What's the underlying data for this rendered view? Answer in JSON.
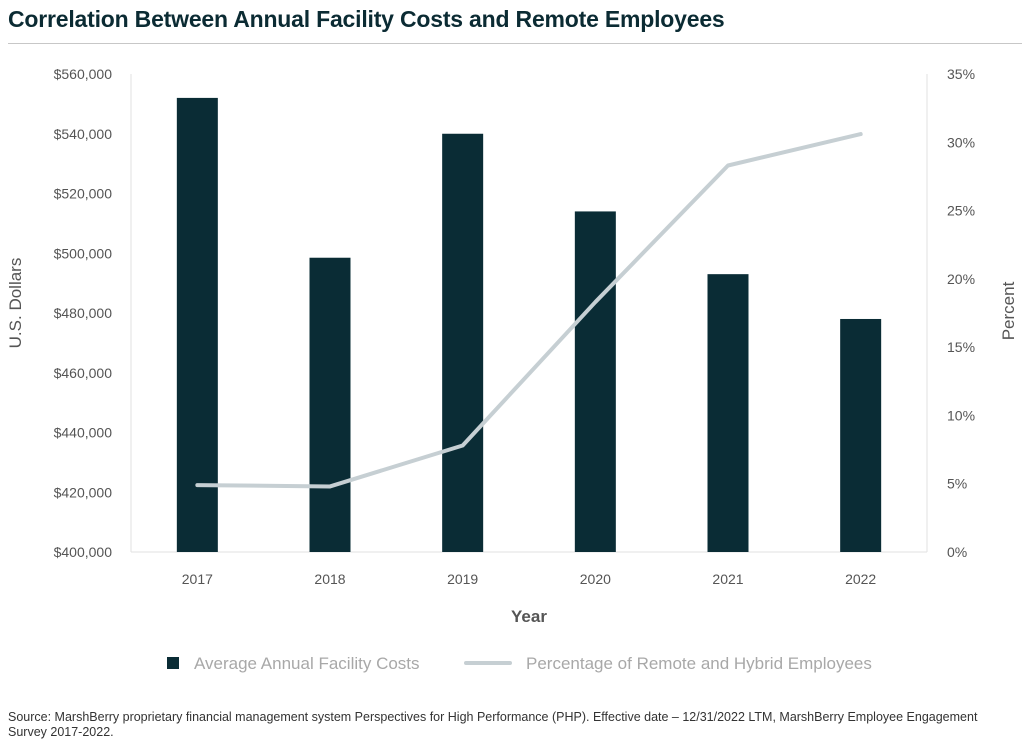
{
  "chart_data": {
    "type": "bar+line",
    "title": "Correlation Between Annual Facility Costs and Remote Employees",
    "xlabel": "Year",
    "ylabel_left": "U.S. Dollars",
    "ylabel_right": "Percent",
    "categories": [
      "2017",
      "2018",
      "2019",
      "2020",
      "2021",
      "2022"
    ],
    "left_axis": {
      "min": 400000,
      "max": 560000,
      "step": 20000,
      "tick_labels": [
        "$400,000",
        "$420,000",
        "$440,000",
        "$460,000",
        "$480,000",
        "$500,000",
        "$520,000",
        "$540,000",
        "$560,000"
      ]
    },
    "right_axis": {
      "min": 0,
      "max": 35,
      "step": 5,
      "tick_labels": [
        "0%",
        "5%",
        "10%",
        "15%",
        "20%",
        "25%",
        "30%",
        "35%"
      ]
    },
    "series": [
      {
        "name": "Average Annual Facility Costs",
        "type": "bar",
        "axis": "left",
        "color": "#0a2c35",
        "values": [
          552000,
          498500,
          540000,
          514000,
          493000,
          478000
        ]
      },
      {
        "name": "Percentage of Remote and Hybrid Employees",
        "type": "line",
        "axis": "right",
        "color": "#c6cfd3",
        "values": [
          4.9,
          4.8,
          7.8,
          18.3,
          28.3,
          30.6
        ]
      }
    ],
    "grid": false,
    "legend_position": "bottom"
  },
  "source_note": "Source: MarshBerry proprietary financial management system Perspectives for High Performance (PHP). Effective date – 12/31/2022 LTM, MarshBerry Employee Engagement Survey 2017-2022."
}
